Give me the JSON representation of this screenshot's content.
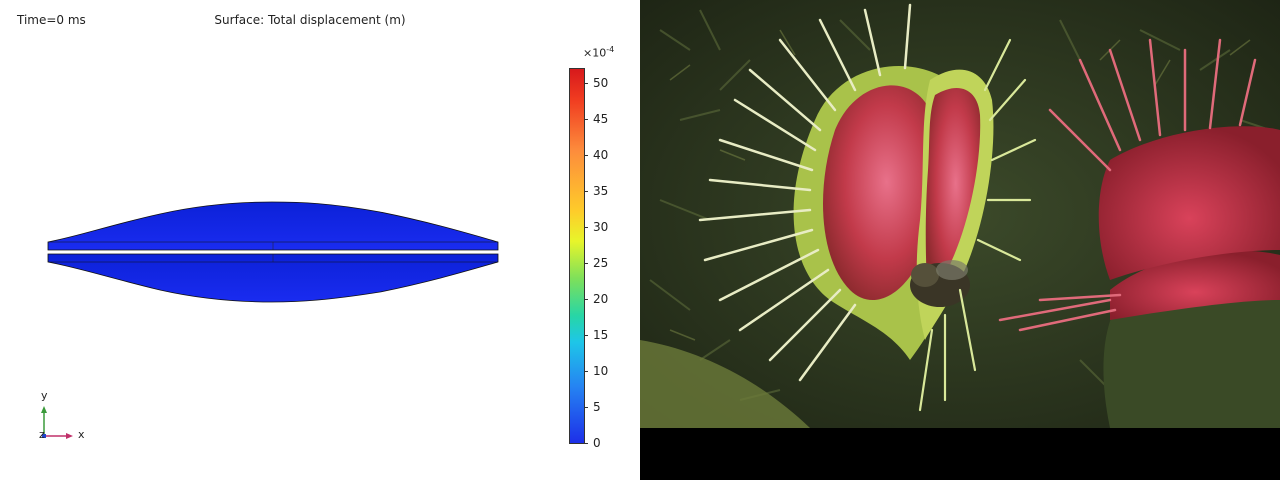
{
  "simulation": {
    "time_label": "Time=0 ms",
    "title": "Surface: Total displacement (m)",
    "colorbar": {
      "exponent_base": "×10",
      "exponent_power": "-4",
      "ticks": [
        "50",
        "45",
        "40",
        "35",
        "30",
        "25",
        "20",
        "15",
        "10",
        "5",
        "0"
      ]
    },
    "axes": {
      "y": "y",
      "z": "z",
      "x": "x"
    },
    "colors": {
      "shell": "#0a1ee0",
      "outline": "#111"
    }
  },
  "photo": {
    "icon": "venus-flytrap-photo"
  }
}
